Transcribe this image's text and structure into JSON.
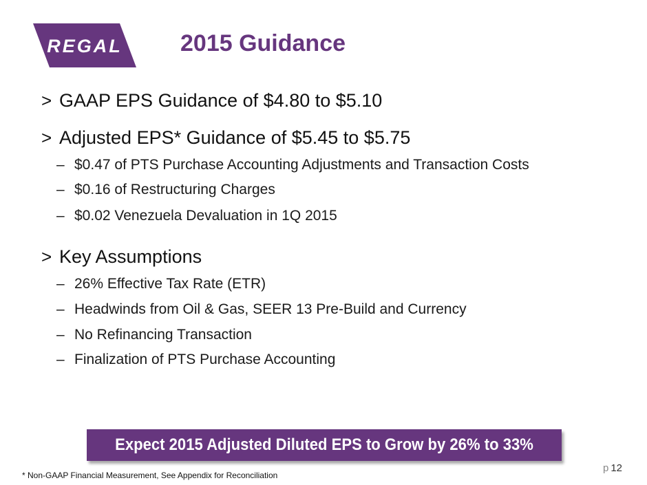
{
  "logo": {
    "text": "REGAL",
    "color": "#66367e"
  },
  "title": "2015 Guidance",
  "bullets": {
    "b1": "GAAP EPS Guidance of $4.80 to $5.10",
    "b2": "Adjusted EPS* Guidance of $5.45 to $5.75",
    "b2_subs": [
      "$0.47 of PTS Purchase Accounting Adjustments and Transaction Costs",
      "$0.16 of Restructuring Charges",
      "$0.02 Venezuela Devaluation in 1Q 2015"
    ],
    "b3": "Key Assumptions",
    "b3_subs": [
      "26% Effective Tax Rate (ETR)",
      "Headwinds from Oil & Gas, SEER 13 Pre-Build and Currency",
      "No Refinancing Transaction",
      "Finalization of PTS Purchase Accounting"
    ],
    "marker": ">",
    "dash": "–"
  },
  "banner": "Expect 2015 Adjusted Diluted EPS to Grow by 26% to 33%",
  "footnote": "*  Non-GAAP Financial Measurement, See Appendix for Reconciliation",
  "page": {
    "prefix": "p",
    "number": "12"
  }
}
